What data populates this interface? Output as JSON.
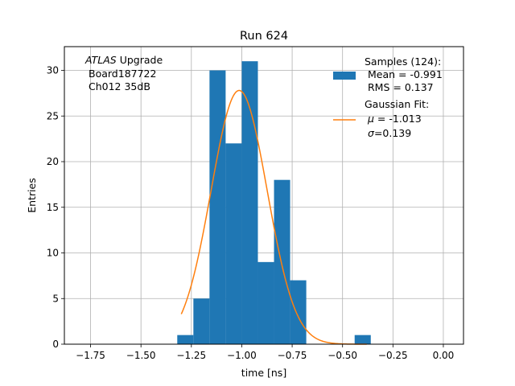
{
  "chart_data": {
    "type": "bar",
    "title": "Run 624",
    "xlabel": "time [ns]",
    "ylabel": "Entries",
    "xlim": [
      -1.88,
      0.1
    ],
    "ylim": [
      0,
      32.6
    ],
    "grid": true,
    "xticks": [
      -1.75,
      -1.5,
      -1.25,
      -1.0,
      -0.75,
      -0.5,
      -0.25,
      0.0
    ],
    "xtick_labels": [
      "−1.75",
      "−1.50",
      "−1.25",
      "−1.00",
      "−0.75",
      "−0.50",
      "−0.25",
      "0.00"
    ],
    "yticks": [
      0,
      5,
      10,
      15,
      20,
      25,
      30
    ],
    "ytick_labels": [
      "0",
      "5",
      "10",
      "15",
      "20",
      "25",
      "30"
    ],
    "histogram": {
      "bin_edges": [
        -1.32,
        -1.24,
        -1.16,
        -1.08,
        -1.0,
        -0.92,
        -0.84,
        -0.76,
        -0.68,
        -0.6,
        -0.52,
        -0.44,
        -0.36
      ],
      "counts": [
        1,
        5,
        30,
        22,
        31,
        9,
        18,
        7,
        0,
        0,
        0,
        1
      ],
      "color": "#1f77b4"
    },
    "fit": {
      "type": "gaussian",
      "amplitude": 27.8,
      "mu": -1.013,
      "sigma": 0.139,
      "x_range": [
        -1.3,
        -0.38
      ],
      "color": "#ff7f0e"
    },
    "annotation": {
      "line1_italic": "ATLAS",
      "line1_rest": " Upgrade",
      "line2": "Board187722",
      "line3": "Ch012 35dB"
    },
    "legend": {
      "placement": "top-right",
      "hist_title": "Samples (124):",
      "hist_mean": "Mean = -0.991",
      "hist_rms": "RMS = 0.137",
      "fit_title": "Gaussian Fit:",
      "fit_mu_symbol": "μ",
      "fit_mu_text": " = -1.013",
      "fit_sigma_symbol": "σ",
      "fit_sigma_text": "=0.139"
    }
  }
}
